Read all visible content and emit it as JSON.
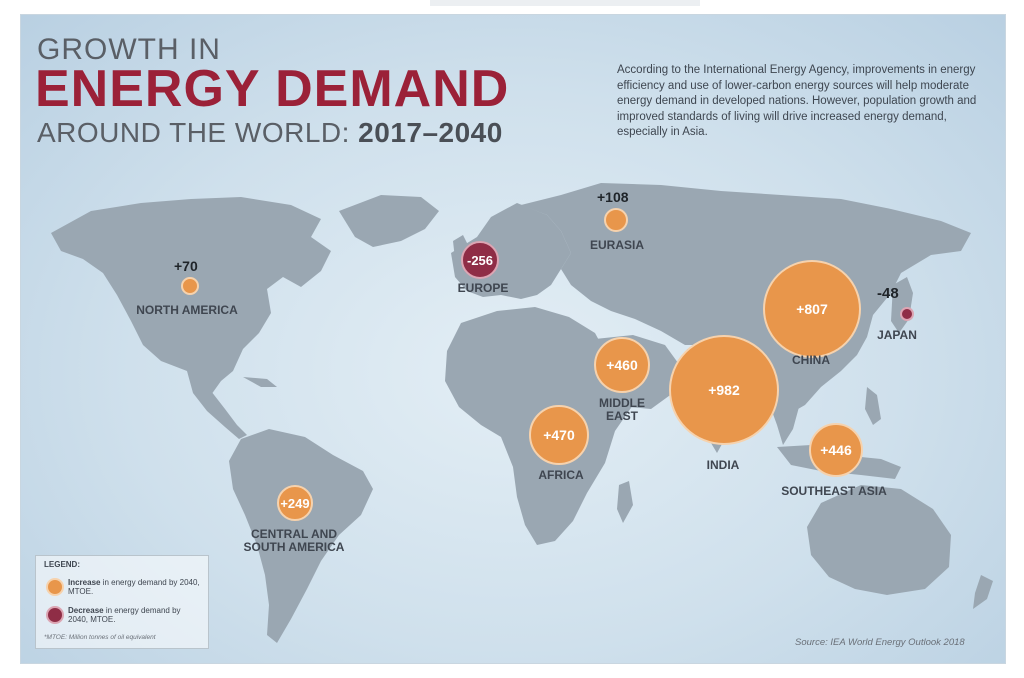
{
  "title": {
    "line1": "GROWTH IN",
    "line2": "ENERGY DEMAND",
    "line3_prefix": "AROUND THE WORLD: ",
    "line3_years": "2017–2040"
  },
  "intro": "According to the International Energy Agency, improvements in energy efficiency and use of lower-carbon energy sources will help moderate energy demand in developed nations. However, population growth and improved standards of living will drive increased energy demand, especially in Asia.",
  "regions": [
    {
      "name": "NORTH AMERICA",
      "value": "+70",
      "trend": "increase"
    },
    {
      "name": "EURASIA",
      "value": "+108",
      "trend": "increase"
    },
    {
      "name": "EUROPE",
      "value": "-256",
      "trend": "decrease"
    },
    {
      "name": "CHINA",
      "value": "+807",
      "trend": "increase"
    },
    {
      "name": "JAPAN",
      "value": "-48",
      "trend": "decrease"
    },
    {
      "name": "MIDDLE EAST",
      "value": "+460",
      "trend": "increase"
    },
    {
      "name": "INDIA",
      "value": "+982",
      "trend": "increase"
    },
    {
      "name": "AFRICA",
      "value": "+470",
      "trend": "increase"
    },
    {
      "name": "SOUTHEAST ASIA",
      "value": "+446",
      "trend": "increase"
    },
    {
      "name": "CENTRAL AND SOUTH AMERICA",
      "value": "+249",
      "trend": "increase"
    }
  ],
  "labels": {
    "north_america": "NORTH AMERICA",
    "eurasia": "EURASIA",
    "europe": "EUROPE",
    "china": "CHINA",
    "japan": "JAPAN",
    "middle_east_1": "MIDDLE",
    "middle_east_2": "EAST",
    "india": "INDIA",
    "africa": "AFRICA",
    "southeast_asia": "SOUTHEAST ASIA",
    "csa_1": "CENTRAL AND",
    "csa_2": "SOUTH AMERICA"
  },
  "values": {
    "north_america": "+70",
    "eurasia": "+108",
    "europe": "-256",
    "china": "+807",
    "japan": "-48",
    "middle_east": "+460",
    "india": "+982",
    "africa": "+470",
    "southeast_asia": "+446",
    "csa": "+249"
  },
  "legend": {
    "title": "LEGEND:",
    "increase_bold": "Increase",
    "increase_text": " in energy demand by 2040, MTOE.",
    "decrease_bold": "Decrease",
    "decrease_text": " in energy demand by 2040, MTOE.",
    "note": "*MTOE: Million tonnes of oil equivalent"
  },
  "source": "Source: IEA World Energy Outlook 2018",
  "colors": {
    "increase": "#e8964b",
    "decrease": "#8f2d46",
    "title_accent": "#9b2138",
    "land": "#9aa7b2"
  }
}
